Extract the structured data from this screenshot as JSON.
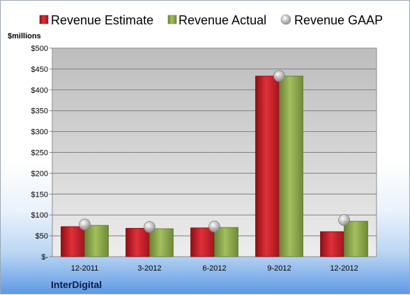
{
  "chart_data": {
    "type": "bar",
    "ylabel": "$millions",
    "company": "InterDigital",
    "categories": [
      "12-2011",
      "3-2012",
      "6-2012",
      "9-2012",
      "12-2012"
    ],
    "y_tick_labels": [
      "$-",
      "$50",
      "$100",
      "$150",
      "$200",
      "$250",
      "$300",
      "$350",
      "$400",
      "$450",
      "$500"
    ],
    "ylim": [
      0,
      500
    ],
    "y_step": 50,
    "grid": true,
    "legend_position": "top",
    "series": [
      {
        "name": "Revenue Estimate",
        "kind": "bar",
        "color": "#c0202a",
        "values": [
          72,
          68,
          69,
          433,
          60
        ]
      },
      {
        "name": "Revenue Actual",
        "kind": "bar",
        "color": "#8ca84c",
        "values": [
          75,
          67,
          70,
          433,
          85
        ]
      },
      {
        "name": "Revenue GAAP",
        "kind": "marker",
        "color": "#a9a9a9",
        "values": [
          77,
          71,
          72,
          433,
          88
        ]
      }
    ]
  }
}
